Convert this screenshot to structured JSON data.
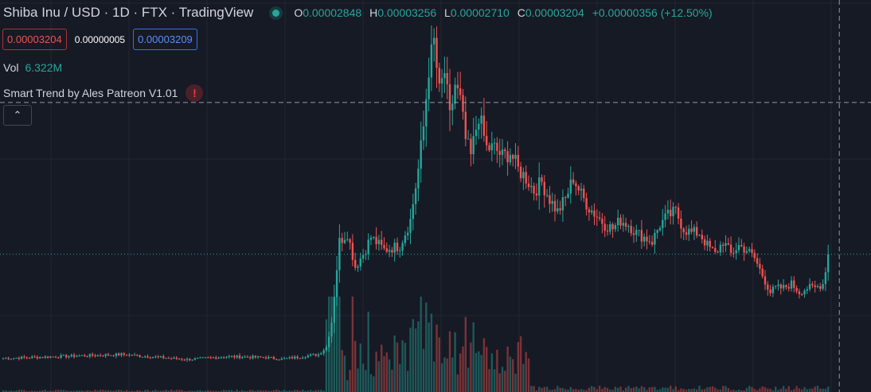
{
  "header": {
    "title": "Shiba Inu / USD · 1D · FTX · TradingView",
    "ohlc": [
      {
        "key": "O",
        "value": "0.00002848"
      },
      {
        "key": "H",
        "value": "0.00003256"
      },
      {
        "key": "L",
        "value": "0.00002710"
      },
      {
        "key": "C",
        "value": "0.00003204"
      }
    ],
    "change": "+0.00000356 (+12.50%)"
  },
  "trade": {
    "bid": "0.00003204",
    "spread": "0.00000005",
    "ask": "0.00003209"
  },
  "volume": {
    "label": "Vol",
    "value": "6.322M"
  },
  "indicator": {
    "name": "Smart Trend by Ales Patreon V1.01",
    "warning_icon": "exclamation-icon"
  },
  "collapse": {
    "icon": "chevron-up-icon",
    "glyph": "⌃"
  },
  "colors": {
    "background": "#161a25",
    "up": "#26a69a",
    "down": "#ef5350",
    "grid": "#232734",
    "crosshair": "#9598a1",
    "last_price_line": "#26a69a"
  },
  "chart_data": {
    "type": "candlestick",
    "series": [
      {
        "name": "Shiba Inu / USD",
        "interval": "1D",
        "exchange": "FTX"
      }
    ],
    "last": {
      "open": 2.848e-05,
      "high": 3.256e-05,
      "low": 2.71e-05,
      "close": 3.204e-05,
      "volume": "6.322M"
    },
    "ylim": [
      0,
      9.2e-05
    ],
    "grid": true,
    "crosshair_price": 6.78e-05,
    "close_path": [
      [
        0,
        7.4e-06
      ],
      [
        25,
        7.9e-06
      ],
      [
        45,
        8.3e-06
      ],
      [
        60,
        7.6e-06
      ],
      [
        70,
        7.1e-06
      ],
      [
        85,
        7.8e-06
      ],
      [
        100,
        7.6e-06
      ],
      [
        106,
        7.2e-06
      ],
      [
        115,
        7.9e-06
      ],
      [
        120,
        8.3e-06
      ],
      [
        123,
        1e-05
      ],
      [
        125,
        1.6e-05
      ],
      [
        128,
        3.5e-05
      ],
      [
        131,
        3.7e-05
      ],
      [
        134,
        2.9e-05
      ],
      [
        137,
        3.2e-05
      ],
      [
        140,
        3.6e-05
      ],
      [
        145,
        3.3e-05
      ],
      [
        151,
        3.4e-05
      ],
      [
        155,
        4e-05
      ],
      [
        158,
        5.2e-05
      ],
      [
        160,
        6.2e-05
      ],
      [
        162,
        7.6e-05
      ],
      [
        164,
        8.2e-05
      ],
      [
        166,
        7e-05
      ],
      [
        168,
        7.5e-05
      ],
      [
        170,
        6.4e-05
      ],
      [
        172,
        7.2e-05
      ],
      [
        174,
        6.8e-05
      ],
      [
        176,
        5.9e-05
      ],
      [
        178,
        5.5e-05
      ],
      [
        181,
        6.5e-05
      ],
      [
        184,
        5.7e-05
      ],
      [
        187,
        5.7e-05
      ],
      [
        190,
        5.5e-05
      ],
      [
        193,
        5.6e-05
      ],
      [
        196,
        5.2e-05
      ],
      [
        199,
        5e-05
      ],
      [
        202,
        4.7e-05
      ],
      [
        205,
        4.9e-05
      ],
      [
        208,
        4.5e-05
      ],
      [
        211,
        4.2e-05
      ],
      [
        214,
        4.5e-05
      ],
      [
        217,
        5e-05
      ],
      [
        220,
        4.6e-05
      ],
      [
        223,
        4.3e-05
      ],
      [
        226,
        4.1e-05
      ],
      [
        229,
        3.9e-05
      ],
      [
        232,
        3.8e-05
      ],
      [
        235,
        4e-05
      ],
      [
        238,
        3.9e-05
      ],
      [
        241,
        3.7e-05
      ],
      [
        244,
        3.6e-05
      ],
      [
        247,
        3.5e-05
      ],
      [
        250,
        3.9e-05
      ],
      [
        253,
        4.1e-05
      ],
      [
        256,
        4.2e-05
      ],
      [
        259,
        3.8e-05
      ],
      [
        262,
        3.7e-05
      ],
      [
        265,
        3.7e-05
      ],
      [
        268,
        3.4e-05
      ],
      [
        271,
        3.2e-05
      ],
      [
        274,
        3.5e-05
      ],
      [
        277,
        3.2e-05
      ],
      [
        280,
        3.4e-05
      ],
      [
        283,
        3.3e-05
      ],
      [
        286,
        3.1e-05
      ],
      [
        289,
        2.7e-05
      ],
      [
        292,
        2.3e-05
      ],
      [
        294,
        2.4e-05
      ],
      [
        297,
        2.4e-05
      ],
      [
        300,
        2.5e-05
      ],
      [
        303,
        2.3e-05
      ],
      [
        306,
        2.4e-05
      ],
      [
        309,
        2.4e-05
      ],
      [
        312,
        2.5e-05
      ],
      [
        314,
        3.2e-05
      ]
    ]
  }
}
